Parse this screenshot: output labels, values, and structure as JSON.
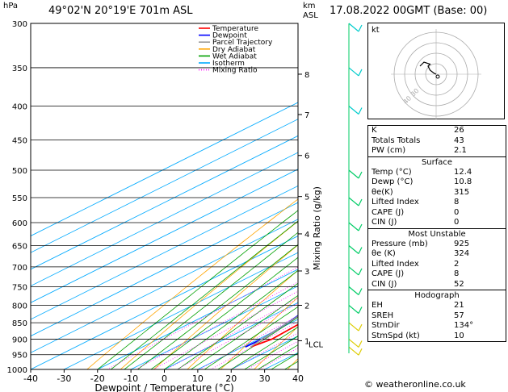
{
  "header": {
    "location": "49°02'N  20°19'E  701m  ASL",
    "datetime": "17.08.2022  00GMT  (Base: 00)",
    "hpa_unit": "hPa",
    "km_unit": "km",
    "asl_unit": "ASL"
  },
  "chart_data": {
    "type": "line",
    "title": "",
    "xlabel": "Dewpoint / Temperature (°C)",
    "ylabel": "hPa",
    "right_axis_label": "Mixing Ratio (g/kg)",
    "xlim": [
      -40,
      40
    ],
    "ylim": [
      1000,
      300
    ],
    "yscale": "log",
    "x_ticks": [
      -40,
      -30,
      -20,
      -10,
      0,
      10,
      20,
      30,
      40
    ],
    "pressure_ticks": [
      300,
      350,
      400,
      450,
      500,
      550,
      600,
      650,
      700,
      750,
      800,
      850,
      900,
      950,
      1000
    ],
    "km_ticks": [
      {
        "label": "8",
        "p": 358
      },
      {
        "label": "7",
        "p": 412
      },
      {
        "label": "6",
        "p": 475
      },
      {
        "label": "5",
        "p": 548
      },
      {
        "label": "4",
        "p": 624
      },
      {
        "label": "3",
        "p": 710
      },
      {
        "label": "2",
        "p": 800
      },
      {
        "label": "1",
        "p": 905
      }
    ],
    "lcl_label": "LCL",
    "lcl_p": 915,
    "mixing_ratio_labels": [
      "1",
      "2",
      "3",
      "4",
      "5",
      "8",
      "10",
      "15",
      "20",
      "25"
    ],
    "mixing_ratio_label_p": 595,
    "legend": [
      "Temperature",
      "Dewpoint",
      "Parcel Trajectory",
      "Dry Adiabat",
      "Wet Adiabat",
      "Isotherm",
      "Mixing Ratio"
    ],
    "legend_position": "top-right",
    "series": [
      {
        "name": "Temperature",
        "color": "#ff0000",
        "points": [
          [
            12.4,
            925
          ],
          [
            14,
            900
          ],
          [
            13,
            850
          ],
          [
            11,
            800
          ],
          [
            10,
            770
          ],
          [
            9,
            750
          ],
          [
            7.5,
            700
          ],
          [
            5,
            650
          ],
          [
            3,
            620
          ],
          [
            3,
            600
          ],
          [
            1,
            550
          ],
          [
            -3,
            500
          ],
          [
            -7,
            450
          ],
          [
            -12,
            400
          ],
          [
            -16,
            370
          ],
          [
            -21,
            350
          ],
          [
            -28,
            320
          ],
          [
            -32,
            300
          ]
        ]
      },
      {
        "name": "Dewpoint",
        "color": "#0000ff",
        "points": [
          [
            10.8,
            925
          ],
          [
            11,
            900
          ],
          [
            9,
            850
          ],
          [
            6,
            800
          ],
          [
            5,
            780
          ],
          [
            4,
            760
          ],
          [
            -1,
            740
          ],
          [
            -2,
            720
          ],
          [
            0,
            700
          ],
          [
            -3,
            670
          ],
          [
            -1,
            660
          ],
          [
            1,
            650
          ],
          [
            1,
            640
          ],
          [
            -1,
            630
          ],
          [
            -16,
            610
          ],
          [
            -17,
            600
          ],
          [
            -22,
            570
          ],
          [
            -32,
            500
          ],
          [
            -36,
            450
          ],
          [
            -38,
            400
          ],
          [
            -35,
            390
          ],
          [
            -37,
            380
          ],
          [
            -33,
            375
          ],
          [
            -34,
            360
          ],
          [
            -37,
            340
          ],
          [
            -40,
            300
          ]
        ]
      },
      {
        "name": "Parcel Trajectory",
        "color": "#999999",
        "points": [
          [
            12.4,
            925
          ],
          [
            11,
            900
          ],
          [
            9,
            850
          ],
          [
            6.5,
            800
          ],
          [
            3.5,
            750
          ],
          [
            0.5,
            700
          ],
          [
            -3,
            650
          ],
          [
            -6.5,
            600
          ],
          [
            -10.5,
            550
          ],
          [
            -15,
            500
          ],
          [
            -20,
            450
          ],
          [
            -25.5,
            400
          ],
          [
            -32,
            350
          ],
          [
            -40,
            300
          ]
        ]
      }
    ],
    "colors": {
      "temperature": "#ff0000",
      "dewpoint": "#0000ff",
      "parcel": "#999999",
      "dry_adiabat": "#ffa500",
      "wet_adiabat": "#00a000",
      "isotherm": "#00aaff",
      "mixing_ratio": "#ff00ff"
    },
    "wind_barb_colors": [
      "#00cccc",
      "#00cc66",
      "#ddcc00"
    ]
  },
  "hodograph": {
    "unit": "kt",
    "ring_labels": [
      "40",
      "30"
    ],
    "trace": [
      [
        0,
        0
      ],
      [
        -1,
        0.5
      ],
      [
        -3,
        2
      ],
      [
        -4,
        4
      ],
      [
        -3,
        5
      ],
      [
        -6,
        6
      ],
      [
        -8,
        4
      ]
    ]
  },
  "indices": {
    "rows": [
      {
        "label": "K",
        "value": "26"
      },
      {
        "label": "Totals Totals",
        "value": "43"
      },
      {
        "label": "PW (cm)",
        "value": "2.1"
      }
    ]
  },
  "surface": {
    "title": "Surface",
    "rows": [
      {
        "label": "Temp (°C)",
        "value": "12.4"
      },
      {
        "label": "Dewp (°C)",
        "value": "10.8"
      },
      {
        "label": "θe(K)",
        "value": "315"
      },
      {
        "label": "Lifted Index",
        "value": "8"
      },
      {
        "label": "CAPE (J)",
        "value": "0"
      },
      {
        "label": "CIN (J)",
        "value": "0"
      }
    ]
  },
  "most_unstable": {
    "title": "Most Unstable",
    "rows": [
      {
        "label": "Pressure (mb)",
        "value": "925"
      },
      {
        "label": "θe (K)",
        "value": "324"
      },
      {
        "label": "Lifted Index",
        "value": "2"
      },
      {
        "label": "CAPE (J)",
        "value": "8"
      },
      {
        "label": "CIN (J)",
        "value": "52"
      }
    ]
  },
  "hodograph_table": {
    "title": "Hodograph",
    "rows": [
      {
        "label": "EH",
        "value": "21"
      },
      {
        "label": "SREH",
        "value": "57"
      },
      {
        "label": "StmDir",
        "value": "134°"
      },
      {
        "label": "StmSpd (kt)",
        "value": "10"
      }
    ]
  },
  "footer": "© weatheronline.co.uk"
}
